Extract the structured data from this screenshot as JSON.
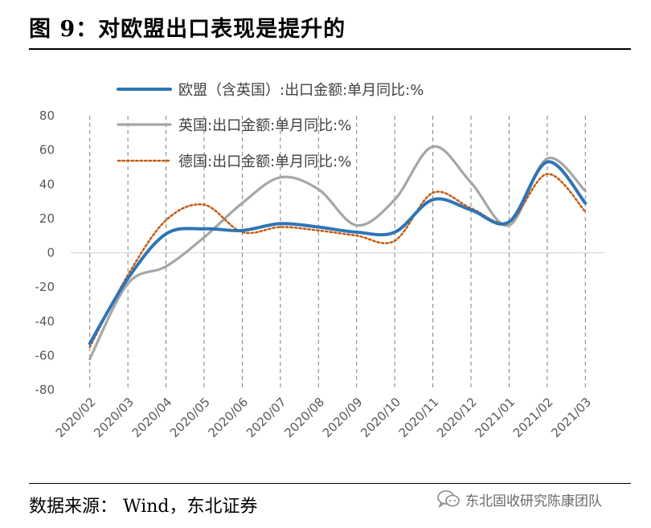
{
  "figure_title": "图  9：对欧盟出口表现是提升的",
  "source_note": "数据来源：  Wind，东北证券",
  "watermark": {
    "icon": "wechat-chat-icon",
    "text": "东北固收研究陈康团队"
  },
  "chart_data": {
    "type": "line",
    "title": "",
    "xlabel": "",
    "ylabel": "",
    "ylim": [
      -80,
      80
    ],
    "yticks": [
      -80,
      -60,
      -40,
      -20,
      0,
      20,
      40,
      60,
      80
    ],
    "grid": "vertical dashed at each month",
    "legend_position": "top-center",
    "x": [
      "2020/02",
      "2020/03",
      "2020/04",
      "2020/05",
      "2020/06",
      "2020/07",
      "2020/08",
      "2020/09",
      "2020/10",
      "2020/11",
      "2020/12",
      "2021/01",
      "2021/02",
      "2021/03"
    ],
    "series": [
      {
        "name": "欧盟（含英国）:出口金额:单月同比:%",
        "color": "#2e75b6",
        "style": "solid-thick",
        "values": [
          -53,
          -15,
          11,
          14,
          13,
          17,
          15,
          12,
          12,
          31,
          25,
          18,
          53,
          29
        ]
      },
      {
        "name": "英国:出口金额:单月同比:%",
        "color": "#a6a6a6",
        "style": "solid",
        "values": [
          -62,
          -18,
          -8,
          9,
          29,
          44,
          37,
          16,
          31,
          62,
          41,
          16,
          55,
          36
        ]
      },
      {
        "name": "德国:出口金额:单月同比:%",
        "color": "#c55a11",
        "style": "dotted",
        "values": [
          -55,
          -13,
          19,
          28,
          12,
          15,
          13,
          10,
          7,
          35,
          26,
          18,
          46,
          24
        ]
      }
    ]
  }
}
